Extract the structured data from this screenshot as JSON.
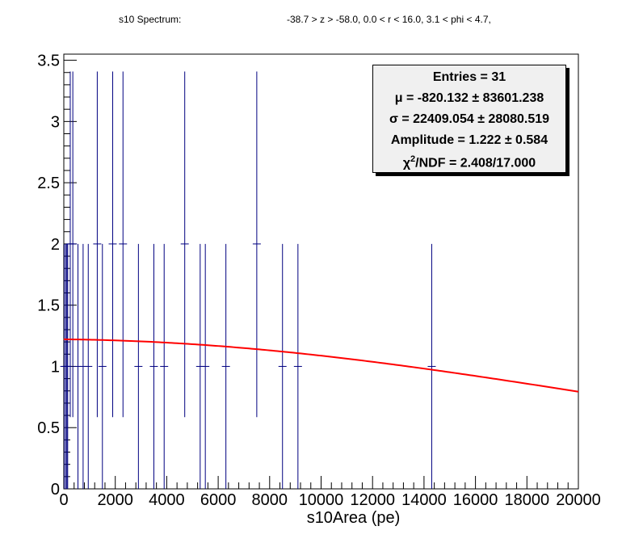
{
  "header": {
    "title": "s10 Spectrum:",
    "cuts": "-38.7 > z > -58.0, 0.0 < r < 16.0, 3.1 < phi < 4.7,"
  },
  "stats": {
    "entries_label": "Entries = 31",
    "mu_label": "μ = -820.132 ± 83601.238",
    "sigma_label": "σ = 22409.054 ± 28080.519",
    "amplitude_label": "Amplitude = 1.222 ± 0.584",
    "chi2_prefix": "χ",
    "chi2_sup": "2",
    "chi2_rest": "/NDF = 2.408/17.000"
  },
  "chart_data": {
    "type": "scatter",
    "xlabel": "s10Area (pe)",
    "ylabel": "",
    "xlim": [
      0,
      20000
    ],
    "ylim": [
      0,
      3.55
    ],
    "x_ticks": [
      0,
      2000,
      4000,
      6000,
      8000,
      10000,
      12000,
      14000,
      16000,
      18000,
      20000
    ],
    "y_ticks": [
      0,
      0.5,
      1,
      1.5,
      2,
      2.5,
      3,
      3.5
    ],
    "series": [
      {
        "kind": "histogram_points_with_errors",
        "color": "#000080",
        "points": [
          {
            "x": 20,
            "y": 1
          },
          {
            "x": 80,
            "y": 1
          },
          {
            "x": 120,
            "y": 1
          },
          {
            "x": 150,
            "y": 1
          },
          {
            "x": 250,
            "y": 2
          },
          {
            "x": 350,
            "y": 2
          },
          {
            "x": 550,
            "y": 1
          },
          {
            "x": 750,
            "y": 1
          },
          {
            "x": 950,
            "y": 1
          },
          {
            "x": 1300,
            "y": 2
          },
          {
            "x": 1500,
            "y": 1
          },
          {
            "x": 1900,
            "y": 2
          },
          {
            "x": 2300,
            "y": 2
          },
          {
            "x": 2900,
            "y": 1
          },
          {
            "x": 3500,
            "y": 1
          },
          {
            "x": 3900,
            "y": 1
          },
          {
            "x": 4700,
            "y": 2
          },
          {
            "x": 5300,
            "y": 1
          },
          {
            "x": 5500,
            "y": 1
          },
          {
            "x": 6300,
            "y": 1
          },
          {
            "x": 7500,
            "y": 2
          },
          {
            "x": 8500,
            "y": 1
          },
          {
            "x": 9100,
            "y": 1
          },
          {
            "x": 14300,
            "y": 1
          }
        ]
      },
      {
        "kind": "fit",
        "color": "#ff0000",
        "function": "gaussian",
        "amplitude": 1.222,
        "mu": -820.132,
        "sigma": 22409.054
      }
    ]
  }
}
